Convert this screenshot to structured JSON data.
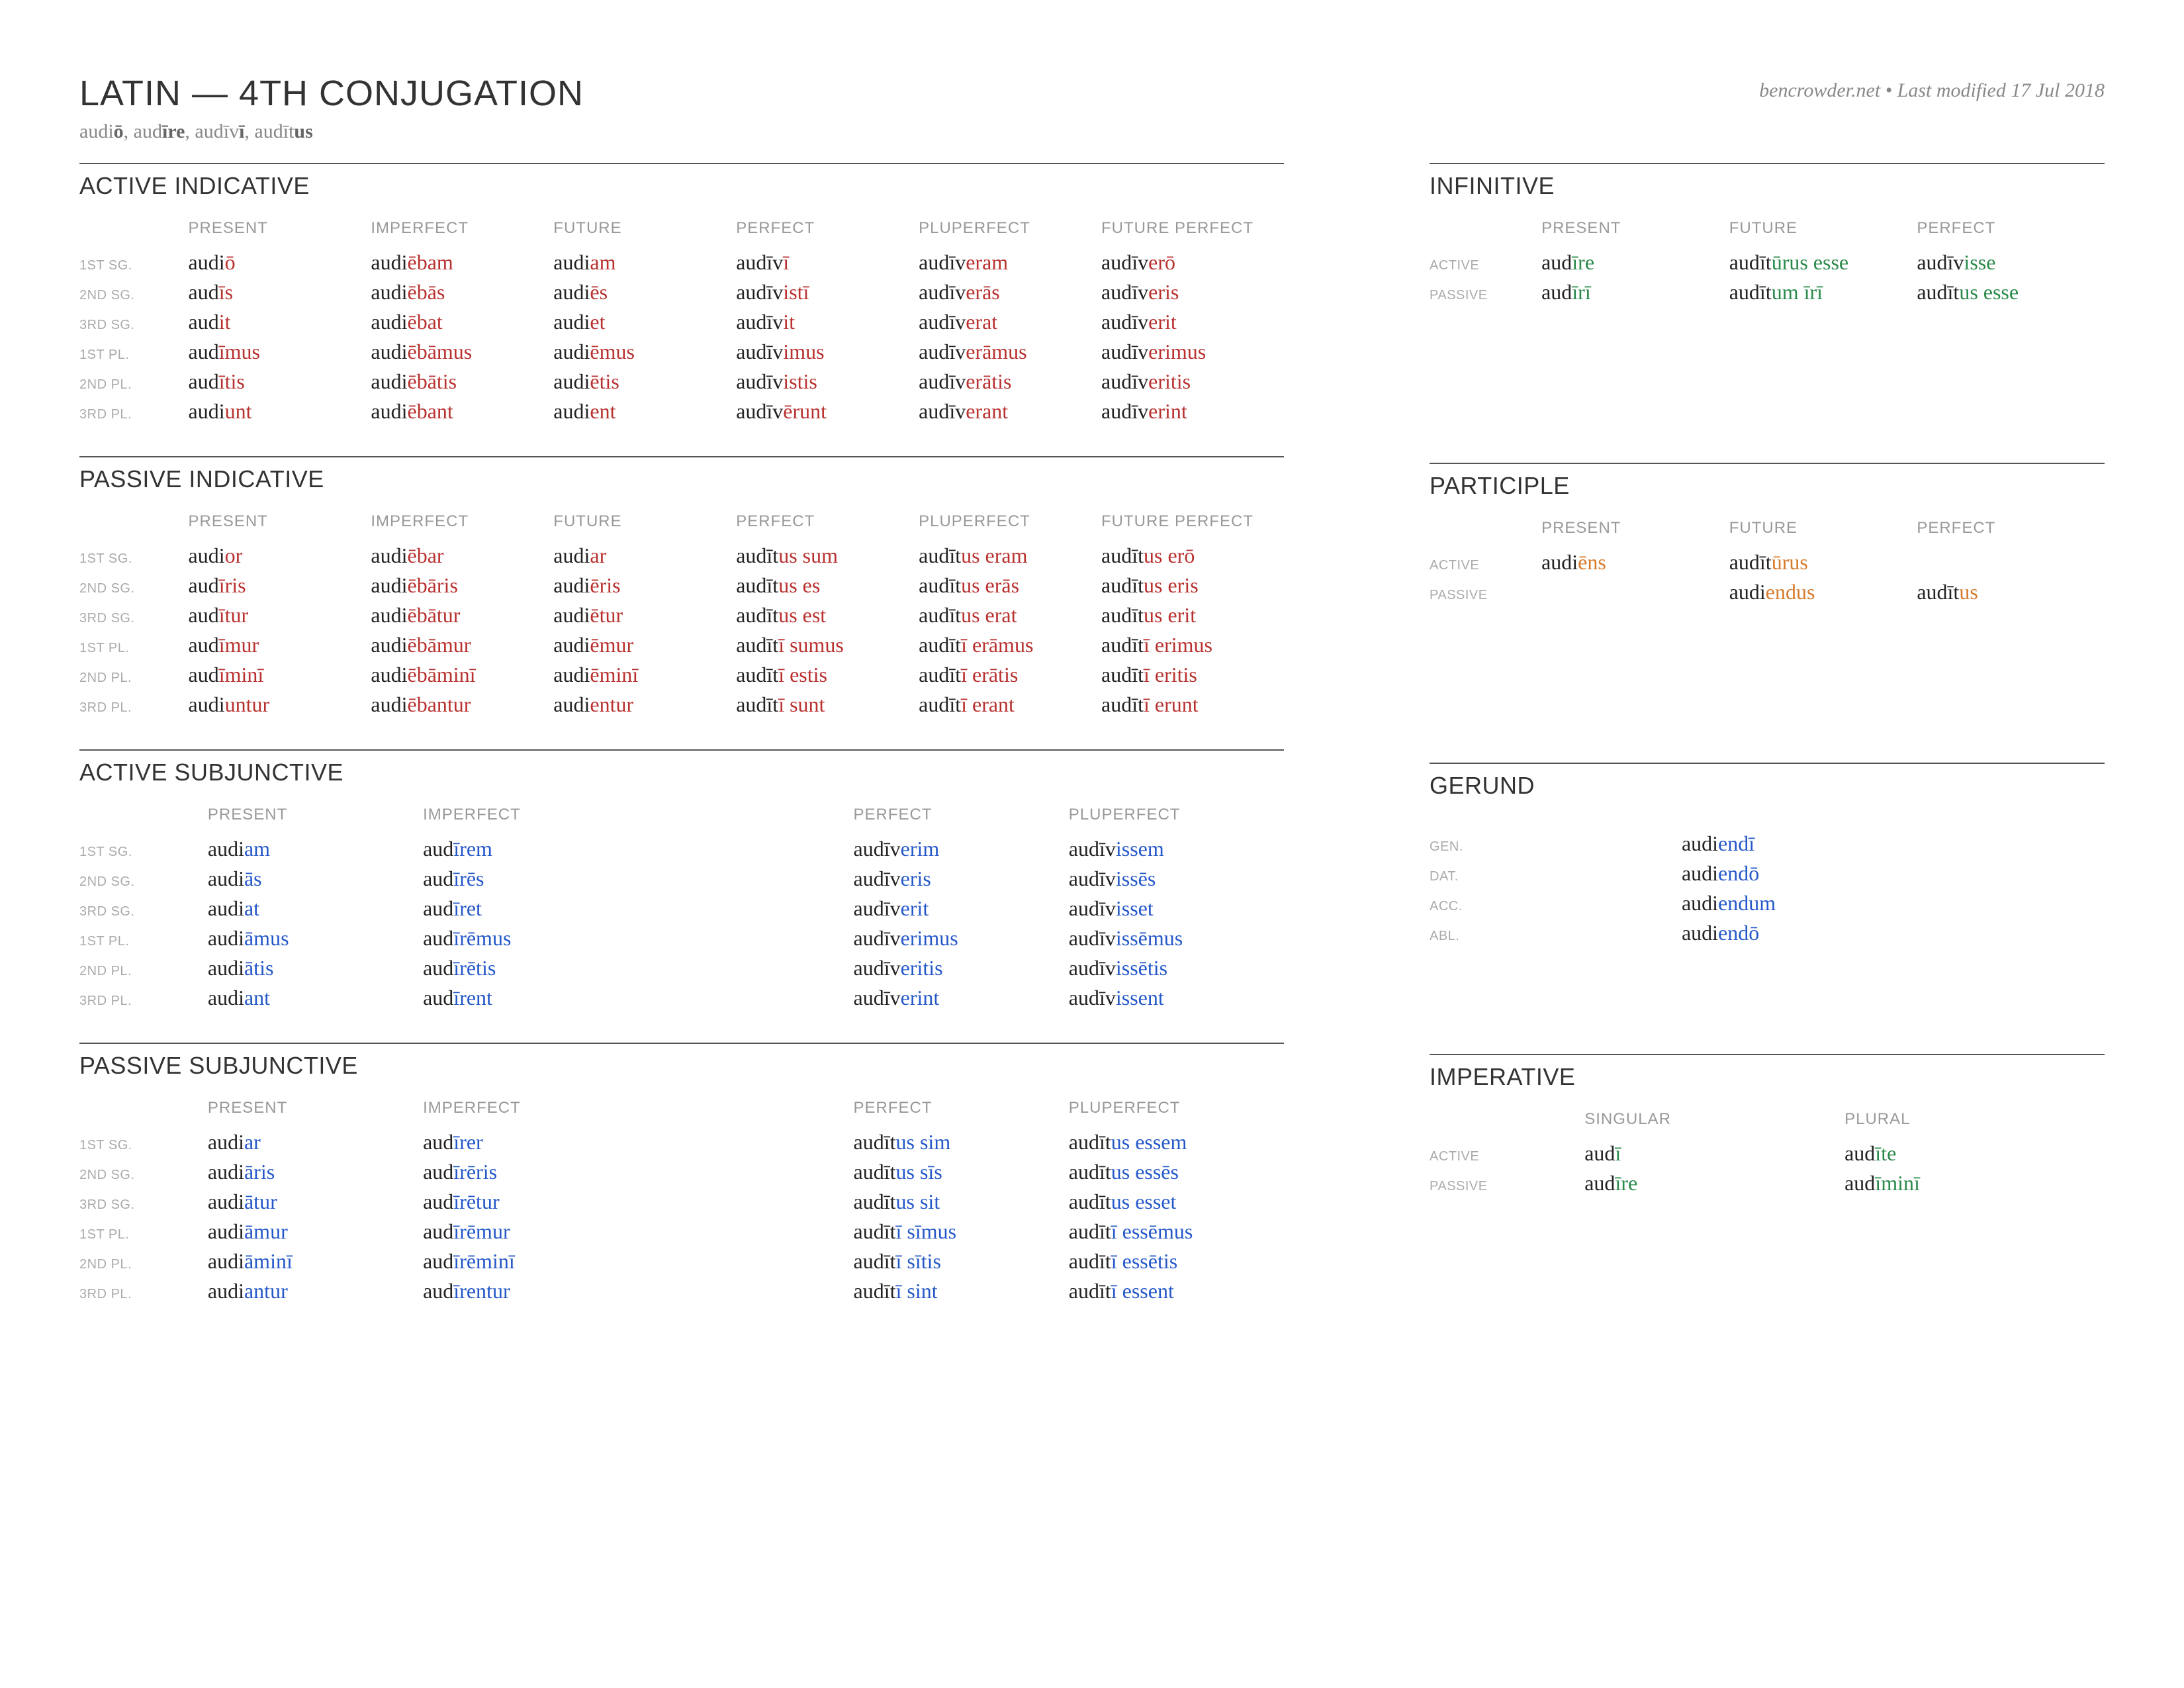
{
  "title": "LATIN — 4TH CONJUGATION",
  "meta": "bencrowder.net • Last modified 17 Jul 2018",
  "principal_parts": [
    {
      "stem": "audi",
      "end": "ō"
    },
    {
      "stem": "aud",
      "end": "īre"
    },
    {
      "stem": "audīv",
      "end": "ī"
    },
    {
      "stem": "audīt",
      "end": "us"
    }
  ],
  "colors": {
    "indicative": "#b8312f",
    "subjunctive": "#2458c9",
    "infinitive": "#2a8a4a",
    "participle": "#d67a2c",
    "gerund": "#2458c9",
    "imperative": "#2a8a4a"
  },
  "row_labels_person": [
    "1ST SG.",
    "2ND SG.",
    "3RD SG.",
    "1ST PL.",
    "2ND PL.",
    "3RD PL."
  ],
  "row_labels_voice": [
    "ACTIVE",
    "PASSIVE"
  ],
  "row_labels_case": [
    "GEN.",
    "DAT.",
    "ACC.",
    "ABL."
  ],
  "tense_cols_full": [
    "PRESENT",
    "IMPERFECT",
    "FUTURE",
    "PERFECT",
    "PLUPERFECT",
    "FUTURE PERFECT"
  ],
  "tense_cols_subj": [
    "PRESENT",
    "IMPERFECT",
    "PERFECT",
    "PLUPERFECT"
  ],
  "tense_cols_inf": [
    "PRESENT",
    "FUTURE",
    "PERFECT"
  ],
  "imp_cols": [
    "SINGULAR",
    "PLURAL"
  ],
  "active_indicative": [
    [
      [
        "audi",
        "ō"
      ],
      [
        "audi",
        "ēbam"
      ],
      [
        "audi",
        "am"
      ],
      [
        "audīv",
        "ī"
      ],
      [
        "audīv",
        "eram"
      ],
      [
        "audīv",
        "erō"
      ]
    ],
    [
      [
        "aud",
        "īs"
      ],
      [
        "audi",
        "ēbās"
      ],
      [
        "audi",
        "ēs"
      ],
      [
        "audīv",
        "istī"
      ],
      [
        "audīv",
        "erās"
      ],
      [
        "audīv",
        "eris"
      ]
    ],
    [
      [
        "aud",
        "it"
      ],
      [
        "audi",
        "ēbat"
      ],
      [
        "audi",
        "et"
      ],
      [
        "audīv",
        "it"
      ],
      [
        "audīv",
        "erat"
      ],
      [
        "audīv",
        "erit"
      ]
    ],
    [
      [
        "aud",
        "īmus"
      ],
      [
        "audi",
        "ēbāmus"
      ],
      [
        "audi",
        "ēmus"
      ],
      [
        "audīv",
        "imus"
      ],
      [
        "audīv",
        "erāmus"
      ],
      [
        "audīv",
        "erimus"
      ]
    ],
    [
      [
        "aud",
        "ītis"
      ],
      [
        "audi",
        "ēbātis"
      ],
      [
        "audi",
        "ētis"
      ],
      [
        "audīv",
        "istis"
      ],
      [
        "audīv",
        "erātis"
      ],
      [
        "audīv",
        "eritis"
      ]
    ],
    [
      [
        "audi",
        "unt"
      ],
      [
        "audi",
        "ēbant"
      ],
      [
        "audi",
        "ent"
      ],
      [
        "audīv",
        "ērunt"
      ],
      [
        "audīv",
        "erant"
      ],
      [
        "audīv",
        "erint"
      ]
    ]
  ],
  "passive_indicative": [
    [
      [
        "audi",
        "or"
      ],
      [
        "audi",
        "ēbar"
      ],
      [
        "audi",
        "ar"
      ],
      [
        "audīt",
        "us sum"
      ],
      [
        "audīt",
        "us eram"
      ],
      [
        "audīt",
        "us erō"
      ]
    ],
    [
      [
        "aud",
        "īris"
      ],
      [
        "audi",
        "ēbāris"
      ],
      [
        "audi",
        "ēris"
      ],
      [
        "audīt",
        "us es"
      ],
      [
        "audīt",
        "us erās"
      ],
      [
        "audīt",
        "us eris"
      ]
    ],
    [
      [
        "aud",
        "ītur"
      ],
      [
        "audi",
        "ēbātur"
      ],
      [
        "audi",
        "ētur"
      ],
      [
        "audīt",
        "us est"
      ],
      [
        "audīt",
        "us erat"
      ],
      [
        "audīt",
        "us erit"
      ]
    ],
    [
      [
        "aud",
        "īmur"
      ],
      [
        "audi",
        "ēbāmur"
      ],
      [
        "audi",
        "ēmur"
      ],
      [
        "audīt",
        "ī sumus"
      ],
      [
        "audīt",
        "ī erāmus"
      ],
      [
        "audīt",
        "ī erimus"
      ]
    ],
    [
      [
        "aud",
        "īminī"
      ],
      [
        "audi",
        "ēbāminī"
      ],
      [
        "audi",
        "ēminī"
      ],
      [
        "audīt",
        "ī estis"
      ],
      [
        "audīt",
        "ī erātis"
      ],
      [
        "audīt",
        "ī eritis"
      ]
    ],
    [
      [
        "audi",
        "untur"
      ],
      [
        "audi",
        "ēbantur"
      ],
      [
        "audi",
        "entur"
      ],
      [
        "audīt",
        "ī sunt"
      ],
      [
        "audīt",
        "ī erant"
      ],
      [
        "audīt",
        "ī erunt"
      ]
    ]
  ],
  "active_subjunctive": [
    [
      [
        "audi",
        "am"
      ],
      [
        "aud",
        "īrem"
      ],
      [
        "audīv",
        "erim"
      ],
      [
        "audīv",
        "issem"
      ]
    ],
    [
      [
        "audi",
        "ās"
      ],
      [
        "aud",
        "īrēs"
      ],
      [
        "audīv",
        "eris"
      ],
      [
        "audīv",
        "issēs"
      ]
    ],
    [
      [
        "audi",
        "at"
      ],
      [
        "aud",
        "īret"
      ],
      [
        "audīv",
        "erit"
      ],
      [
        "audīv",
        "isset"
      ]
    ],
    [
      [
        "audi",
        "āmus"
      ],
      [
        "aud",
        "īrēmus"
      ],
      [
        "audīv",
        "erimus"
      ],
      [
        "audīv",
        "issēmus"
      ]
    ],
    [
      [
        "audi",
        "ātis"
      ],
      [
        "aud",
        "īrētis"
      ],
      [
        "audīv",
        "eritis"
      ],
      [
        "audīv",
        "issētis"
      ]
    ],
    [
      [
        "audi",
        "ant"
      ],
      [
        "aud",
        "īrent"
      ],
      [
        "audīv",
        "erint"
      ],
      [
        "audīv",
        "issent"
      ]
    ]
  ],
  "passive_subjunctive": [
    [
      [
        "audi",
        "ar"
      ],
      [
        "aud",
        "īrer"
      ],
      [
        "audīt",
        "us sim"
      ],
      [
        "audīt",
        "us essem"
      ]
    ],
    [
      [
        "audi",
        "āris"
      ],
      [
        "aud",
        "īrēris"
      ],
      [
        "audīt",
        "us sīs"
      ],
      [
        "audīt",
        "us essēs"
      ]
    ],
    [
      [
        "audi",
        "ātur"
      ],
      [
        "aud",
        "īrētur"
      ],
      [
        "audīt",
        "us sit"
      ],
      [
        "audīt",
        "us esset"
      ]
    ],
    [
      [
        "audi",
        "āmur"
      ],
      [
        "aud",
        "īrēmur"
      ],
      [
        "audīt",
        "ī sīmus"
      ],
      [
        "audīt",
        "ī essēmus"
      ]
    ],
    [
      [
        "audi",
        "āminī"
      ],
      [
        "aud",
        "īrēminī"
      ],
      [
        "audīt",
        "ī sītis"
      ],
      [
        "audīt",
        "ī essētis"
      ]
    ],
    [
      [
        "audi",
        "antur"
      ],
      [
        "aud",
        "īrentur"
      ],
      [
        "audīt",
        "ī sint"
      ],
      [
        "audīt",
        "ī essent"
      ]
    ]
  ],
  "infinitive": [
    [
      [
        "aud",
        "īre"
      ],
      [
        "audīt",
        "ūrus esse"
      ],
      [
        "audīv",
        "isse"
      ]
    ],
    [
      [
        "aud",
        "īrī"
      ],
      [
        "audīt",
        "um īrī"
      ],
      [
        "audīt",
        "us esse"
      ]
    ]
  ],
  "participle": [
    [
      [
        "audi",
        "ēns"
      ],
      [
        "audīt",
        "ūrus"
      ],
      [
        "",
        ""
      ]
    ],
    [
      [
        "",
        ""
      ],
      [
        "audi",
        "endus"
      ],
      [
        "audīt",
        "us"
      ]
    ]
  ],
  "gerund": [
    [
      [
        "audi",
        "endī"
      ]
    ],
    [
      [
        "audi",
        "endō"
      ]
    ],
    [
      [
        "audi",
        "endum"
      ]
    ],
    [
      [
        "audi",
        "endō"
      ]
    ]
  ],
  "imperative": [
    [
      [
        "aud",
        "ī"
      ],
      [
        "aud",
        "īte"
      ]
    ],
    [
      [
        "aud",
        "īre"
      ],
      [
        "aud",
        "īminī"
      ]
    ]
  ],
  "section_titles": {
    "active_indicative": "ACTIVE INDICATIVE",
    "passive_indicative": "PASSIVE INDICATIVE",
    "active_subjunctive": "ACTIVE SUBJUNCTIVE",
    "passive_subjunctive": "PASSIVE SUBJUNCTIVE",
    "infinitive": "INFINITIVE",
    "participle": "PARTICIPLE",
    "gerund": "GERUND",
    "imperative": "IMPERATIVE"
  }
}
